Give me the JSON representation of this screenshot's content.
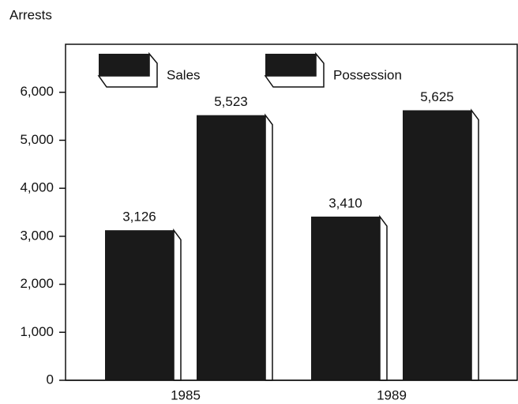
{
  "chart_data": {
    "type": "bar",
    "y_label": "Arrests",
    "categories": [
      "1985",
      "1989"
    ],
    "series": [
      {
        "name": "Sales",
        "color": "#1a1a1a",
        "values": [
          3126,
          3410
        ],
        "value_labels": [
          "3,126",
          "3,410"
        ]
      },
      {
        "name": "Possession",
        "color": "#1a1a1a",
        "values": [
          5523,
          5625
        ],
        "value_labels": [
          "5,523",
          "5,625"
        ]
      }
    ],
    "ylim": [
      0,
      7000
    ],
    "yticks": [
      0,
      {
        "value": 1000,
        "label": "1,000"
      },
      {
        "value": 2000,
        "label": "2,000"
      },
      {
        "value": 3000,
        "label": "3,000"
      },
      {
        "value": 4000,
        "label": "4,000"
      },
      {
        "value": 5000,
        "label": "5,000"
      },
      {
        "value": 6000,
        "label": "6,000"
      }
    ]
  }
}
